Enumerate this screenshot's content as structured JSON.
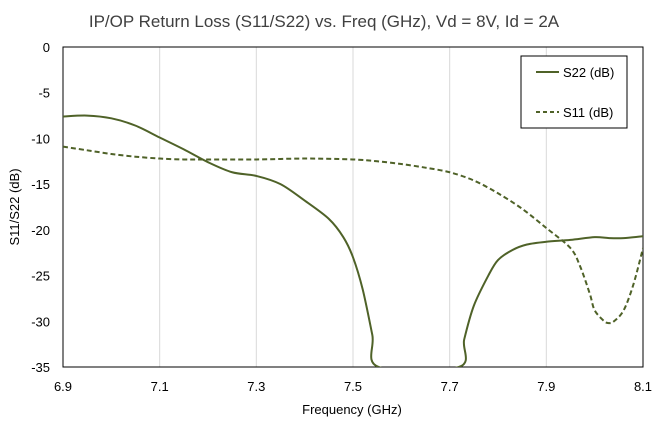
{
  "chart_data": {
    "type": "line",
    "title": "IP/OP Return Loss (S11/S22) vs. Freq (GHz), Vd = 8V, Id = 2A",
    "xlabel": "Frequency (GHz)",
    "ylabel": "S11/S22 (dB)",
    "xlim": [
      6.9,
      8.1
    ],
    "ylim": [
      -35,
      0
    ],
    "xticks": [
      "6.9",
      "7.1",
      "7.3",
      "7.5",
      "7.7",
      "7.9",
      "8.1"
    ],
    "yticks": [
      "0",
      "-5",
      "-10",
      "-15",
      "-20",
      "-25",
      "-30",
      "-35"
    ],
    "grid": "vertical",
    "legend_position": "top-right",
    "series": [
      {
        "name": "S22 (dB)",
        "style": "solid",
        "color": "#4f6228",
        "x": [
          6.9,
          6.95,
          7.0,
          7.05,
          7.1,
          7.15,
          7.2,
          7.25,
          7.3,
          7.35,
          7.4,
          7.45,
          7.48,
          7.5,
          7.52,
          7.54,
          7.553,
          7.719,
          7.73,
          7.75,
          7.78,
          7.8,
          7.83,
          7.86,
          7.9,
          7.95,
          8.0,
          8.03,
          8.06,
          8.1
        ],
        "y": [
          -7.6,
          -7.5,
          -7.8,
          -8.6,
          -9.9,
          -11.2,
          -12.6,
          -13.7,
          -14.1,
          -15.0,
          -16.8,
          -18.8,
          -20.8,
          -23.0,
          -26.5,
          -31.5,
          -35.0,
          -35.0,
          -32.0,
          -28.3,
          -25.0,
          -23.3,
          -22.2,
          -21.6,
          -21.3,
          -21.1,
          -20.8,
          -20.9,
          -20.9,
          -20.7
        ]
      },
      {
        "name": "S11 (dB)",
        "style": "dashed",
        "color": "#4f6228",
        "x": [
          6.9,
          6.95,
          7.0,
          7.05,
          7.1,
          7.15,
          7.2,
          7.3,
          7.4,
          7.5,
          7.55,
          7.6,
          7.65,
          7.7,
          7.75,
          7.8,
          7.85,
          7.9,
          7.95,
          7.97,
          7.99,
          8.0,
          8.02,
          8.03,
          8.04,
          8.06,
          8.08,
          8.1
        ],
        "y": [
          -10.9,
          -11.3,
          -11.7,
          -12.0,
          -12.2,
          -12.3,
          -12.3,
          -12.3,
          -12.2,
          -12.3,
          -12.5,
          -12.8,
          -13.2,
          -13.7,
          -14.6,
          -16.0,
          -17.7,
          -19.8,
          -22.0,
          -24.0,
          -27.0,
          -28.8,
          -30.0,
          -30.2,
          -30.0,
          -28.8,
          -26.0,
          -22.0
        ]
      }
    ]
  }
}
